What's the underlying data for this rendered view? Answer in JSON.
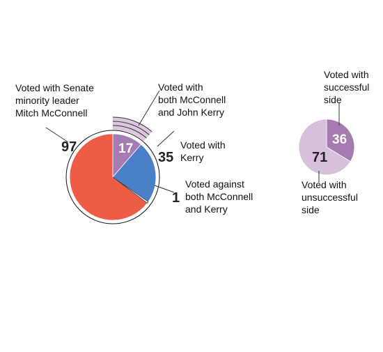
{
  "chart_data": [
    {
      "type": "pie",
      "title": "",
      "values": [
        97,
        17,
        35,
        1
      ],
      "series": [
        {
          "name": "Voted with Senate minority leader Mitch McConnell",
          "value": 97,
          "color": "#ee5c45"
        },
        {
          "name": "Voted with both McConnell and John Kerry",
          "value": 17,
          "color": "#a67bb1"
        },
        {
          "name": "Voted with Kerry",
          "value": 35,
          "color": "#4a80c7"
        },
        {
          "name": "Voted against both McConnell and Kerry",
          "value": 1,
          "color": "#ffffff"
        }
      ],
      "labels": {
        "mcconnell": {
          "lines": [
            "Voted with Senate",
            "minority leader",
            "Mitch McConnell"
          ],
          "value": "97"
        },
        "both": {
          "lines": [
            "Voted with",
            "both McConnell",
            "and John Kerry"
          ],
          "value": "17"
        },
        "kerry": {
          "lines": [
            "Voted with",
            "Kerry"
          ],
          "value": "35"
        },
        "against": {
          "lines": [
            "Voted against",
            "both McConnell",
            "and Kerry"
          ],
          "value": "1"
        }
      },
      "overlap_color": "#dcc6e0"
    },
    {
      "type": "pie",
      "title": "",
      "values": [
        36,
        71
      ],
      "series": [
        {
          "name": "Voted with successful side",
          "value": 36,
          "color": "#a67bb1"
        },
        {
          "name": "Voted with unsuccessful side",
          "value": 71,
          "color": "#d6c0dc"
        }
      ],
      "labels": {
        "successful": {
          "lines": [
            "Voted with",
            "successful",
            "side"
          ],
          "value": "36"
        },
        "unsuccessful": {
          "lines": [
            "Voted with",
            "unsuccessful",
            "side"
          ],
          "value": "71"
        }
      }
    }
  ]
}
